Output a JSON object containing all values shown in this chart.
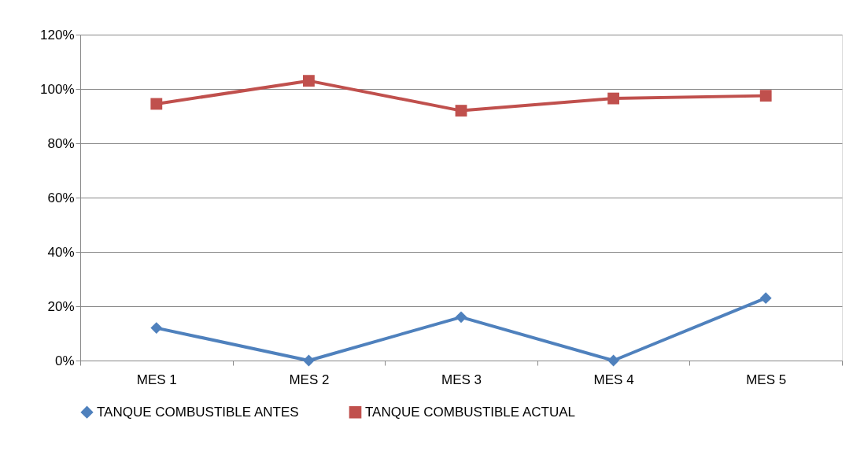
{
  "chart_data": {
    "type": "line",
    "categories": [
      "MES 1",
      "MES 2",
      "MES 3",
      "MES 4",
      "MES 5"
    ],
    "series": [
      {
        "name": "TANQUE COMBUSTIBLE ANTES",
        "color": "#4f81bd",
        "marker": "diamond",
        "values": [
          12,
          0,
          16,
          0,
          23
        ]
      },
      {
        "name": "TANQUE COMBUSTIBLE ACTUAL",
        "color": "#c0504d",
        "marker": "square",
        "values": [
          94.5,
          103,
          92,
          96.5,
          97.5
        ]
      }
    ],
    "ylim": [
      0,
      120
    ],
    "yticks": [
      {
        "value": 0,
        "label": "0%"
      },
      {
        "value": 20,
        "label": "20%"
      },
      {
        "value": 40,
        "label": "40%"
      },
      {
        "value": 60,
        "label": "60%"
      },
      {
        "value": 80,
        "label": "80%"
      },
      {
        "value": 100,
        "label": "100%"
      },
      {
        "value": 120,
        "label": "120%"
      }
    ],
    "grid": "y",
    "legend": "bottom",
    "line_style": "solid"
  }
}
